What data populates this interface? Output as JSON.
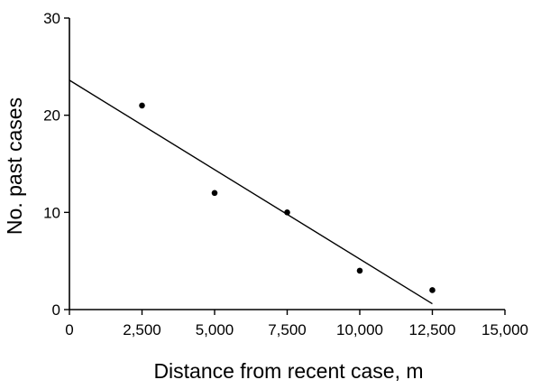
{
  "chart_data": {
    "type": "scatter",
    "title": "",
    "xlabel": "Distance from recent case, m",
    "ylabel": "No. past cases",
    "xlim": [
      0,
      15000
    ],
    "ylim": [
      0,
      30
    ],
    "x_ticks": [
      0,
      2500,
      5000,
      7500,
      10000,
      12500,
      15000
    ],
    "x_tick_labels": [
      "0",
      "2,500",
      "5,000",
      "7,500",
      "10,000",
      "12,500",
      "15,000"
    ],
    "y_ticks": [
      0,
      10,
      20,
      30
    ],
    "y_tick_labels": [
      "0",
      "10",
      "20",
      "30"
    ],
    "grid": false,
    "points": [
      {
        "x": 2500,
        "y": 21
      },
      {
        "x": 5000,
        "y": 12
      },
      {
        "x": 7500,
        "y": 10
      },
      {
        "x": 10000,
        "y": 4
      },
      {
        "x": 12500,
        "y": 2
      }
    ],
    "trend_line": {
      "x": [
        0,
        12500
      ],
      "y": [
        23.6,
        0.6
      ]
    },
    "colors": {
      "axis": "#000000",
      "points": "#000000",
      "line": "#000000"
    }
  }
}
